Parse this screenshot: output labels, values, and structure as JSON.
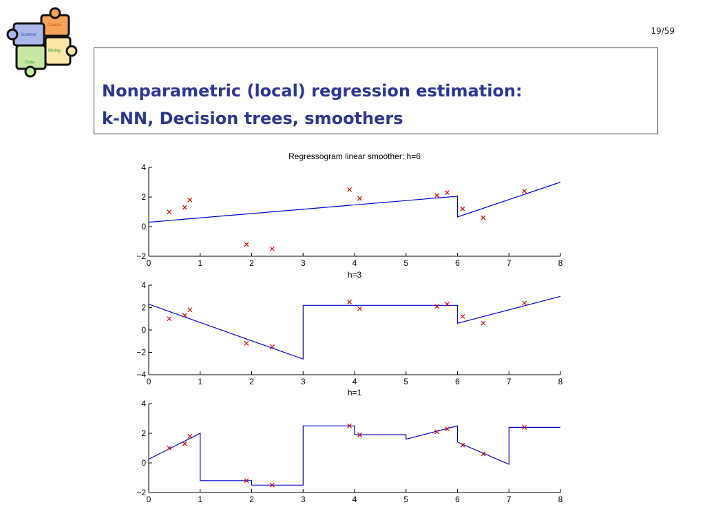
{
  "page": {
    "number": "19/59"
  },
  "logo": {
    "pieces": [
      "Course",
      "Summer",
      "Mining",
      "Data"
    ],
    "colors": [
      "#f5a25b",
      "#aab7e8",
      "#c8e7a4",
      "#fbe7a8"
    ]
  },
  "slide": {
    "title_line1": "Nonparametric (local) regression estimation:",
    "title_line2": "k-NN, Decision trees, smoothers"
  },
  "colors": {
    "title": "#2e3592",
    "fit_line": "#0000cc",
    "points": "#cc0000"
  },
  "chart_data": [
    {
      "type": "line",
      "title": "Regressogram linear smoother: h=6",
      "xlim": [
        0,
        8
      ],
      "ylim": [
        -2,
        4
      ],
      "xticks": [
        0,
        1,
        2,
        3,
        4,
        5,
        6,
        7,
        8
      ],
      "yticks": [
        -2,
        0,
        2,
        4
      ],
      "points": {
        "x": [
          0.4,
          0.7,
          0.8,
          1.9,
          2.4,
          3.9,
          4.1,
          5.6,
          5.8,
          6.1,
          6.5,
          7.3
        ],
        "y": [
          1.0,
          1.3,
          1.8,
          -1.2,
          -1.5,
          2.5,
          1.9,
          2.1,
          2.3,
          1.2,
          0.6,
          2.4
        ]
      },
      "fit": {
        "x": [
          0,
          6,
          6,
          8
        ],
        "y": [
          0.3,
          2.05,
          0.65,
          3.0
        ]
      }
    },
    {
      "type": "line",
      "title": "h=3",
      "xlim": [
        0,
        8
      ],
      "ylim": [
        -4,
        4
      ],
      "xticks": [
        0,
        1,
        2,
        3,
        4,
        5,
        6,
        7,
        8
      ],
      "yticks": [
        -4,
        -2,
        0,
        2,
        4
      ],
      "points": {
        "x": [
          0.4,
          0.7,
          0.8,
          1.9,
          2.4,
          3.9,
          4.1,
          5.6,
          5.8,
          6.1,
          6.5,
          7.3
        ],
        "y": [
          1.0,
          1.3,
          1.8,
          -1.2,
          -1.5,
          2.5,
          1.9,
          2.1,
          2.3,
          1.2,
          0.6,
          2.4
        ]
      },
      "fit": {
        "x": [
          0,
          3,
          3,
          6,
          6,
          8
        ],
        "y": [
          2.3,
          -2.6,
          2.2,
          2.2,
          0.6,
          3.0
        ]
      }
    },
    {
      "type": "line",
      "title": "h=1",
      "xlim": [
        0,
        8
      ],
      "ylim": [
        -2,
        4
      ],
      "xticks": [
        0,
        1,
        2,
        3,
        4,
        5,
        6,
        7,
        8
      ],
      "yticks": [
        -2,
        0,
        2,
        4
      ],
      "points": {
        "x": [
          0.4,
          0.7,
          0.8,
          1.9,
          2.4,
          3.9,
          4.1,
          5.6,
          5.8,
          6.1,
          6.5,
          7.3
        ],
        "y": [
          1.0,
          1.3,
          1.8,
          -1.2,
          -1.5,
          2.5,
          1.9,
          2.1,
          2.3,
          1.2,
          0.6,
          2.4
        ]
      },
      "fit": {
        "x": [
          0,
          1,
          1,
          2,
          2,
          3,
          3,
          4,
          4,
          5,
          5,
          6,
          6,
          7,
          7,
          8
        ],
        "y": [
          0.25,
          2.0,
          -1.2,
          -1.2,
          -1.5,
          -1.5,
          2.5,
          2.5,
          1.9,
          1.9,
          1.6,
          2.5,
          1.4,
          -0.1,
          2.4,
          2.4
        ]
      }
    }
  ]
}
